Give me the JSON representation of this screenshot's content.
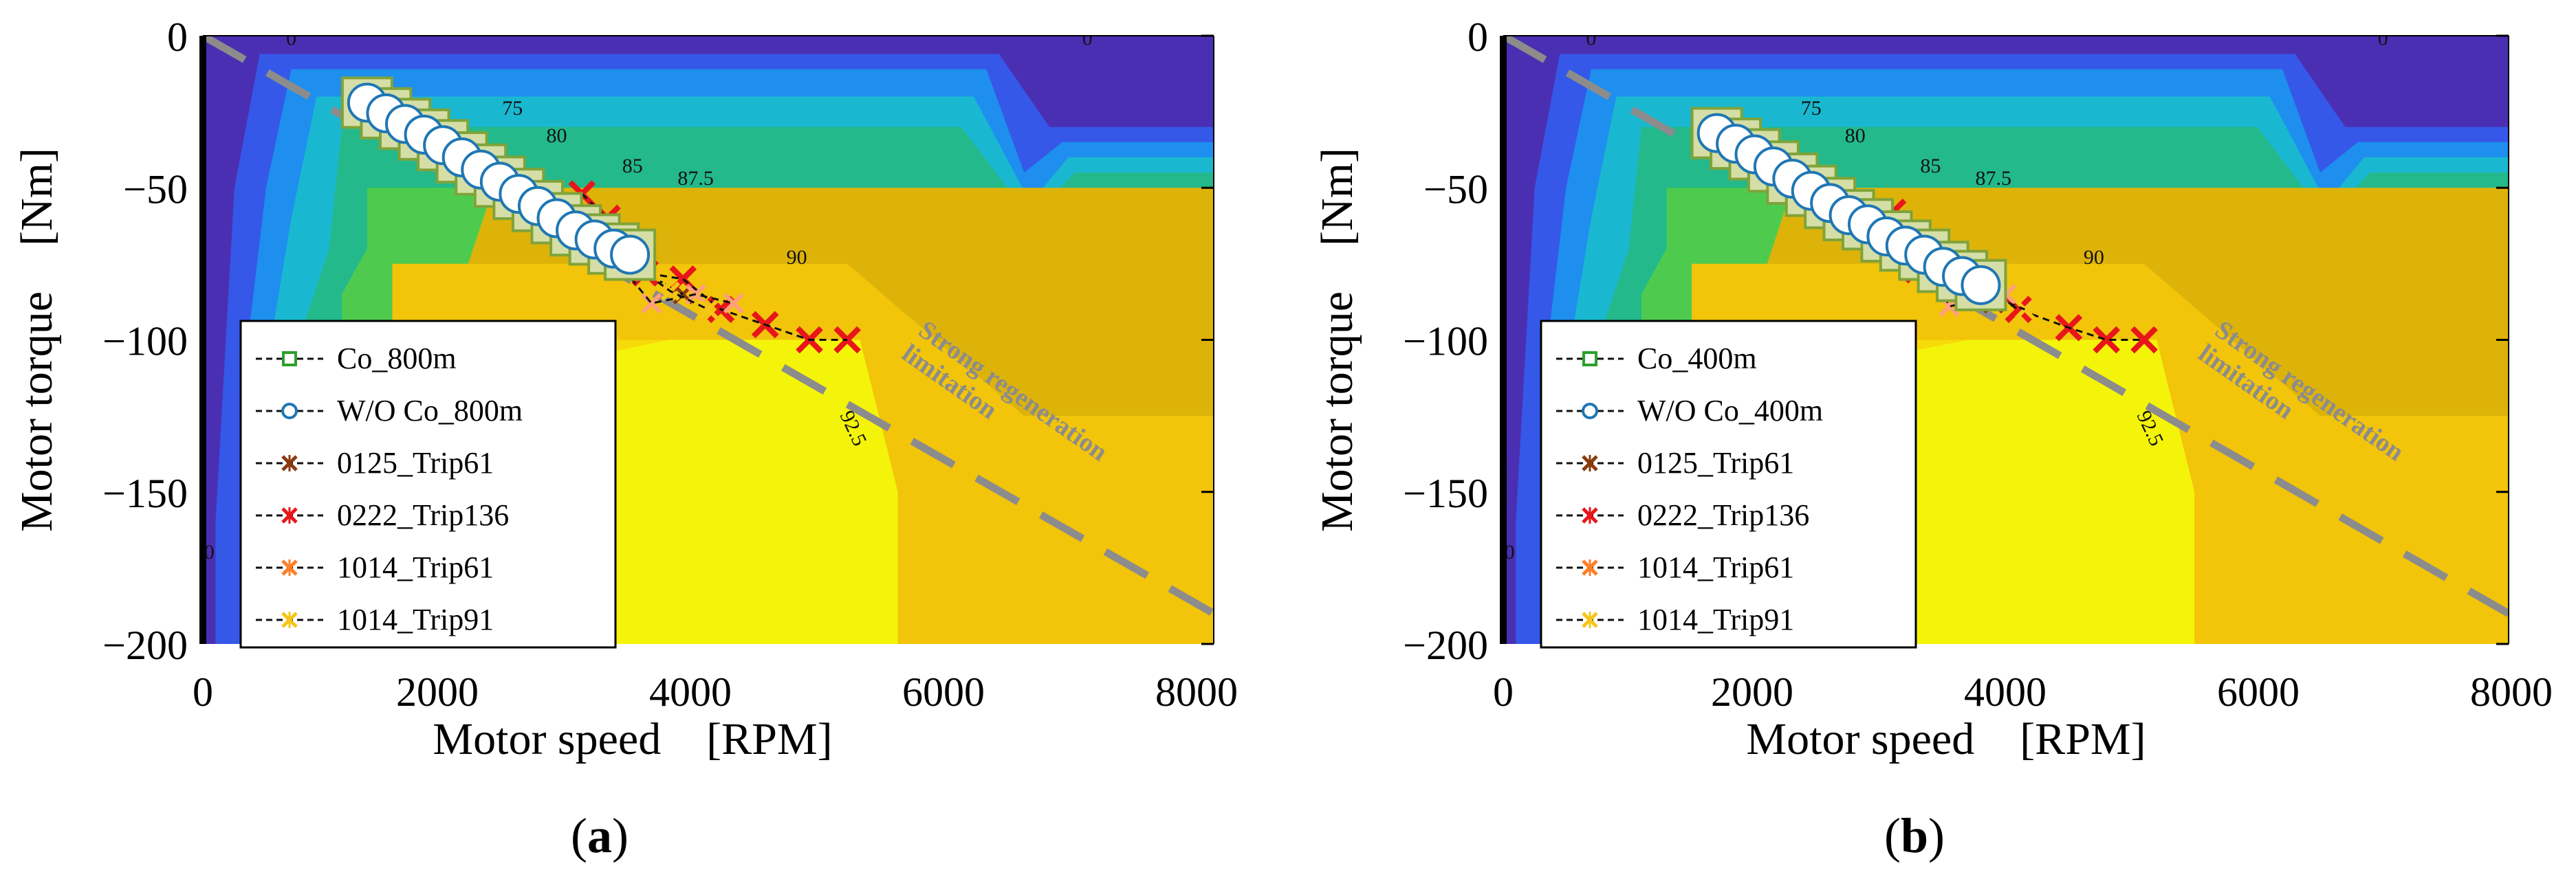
{
  "chart_data": [
    {
      "type": "scatter",
      "panel_label": "a",
      "xlabel": "Motor speed　[RPM]",
      "ylabel": "Motor torque　[Nm]",
      "xlim": [
        0,
        8000
      ],
      "ylim": [
        -200,
        0
      ],
      "xticks": [
        "0",
        "2000",
        "4000",
        "6000",
        "8000"
      ],
      "yticks": [
        "0",
        "−50",
        "−100",
        "−150",
        "−200"
      ],
      "legend": [
        "Co_800m",
        "W/O Co_800m",
        "0125_Trip61",
        "0222_Trip136",
        "1014_Trip61",
        "1014_Trip91"
      ],
      "contour_labels": [
        "0",
        "0",
        "0",
        "75",
        "80",
        "85",
        "87.5",
        "90",
        "92.5"
      ],
      "annotation": "Strong regeneration limitation",
      "limit_line": {
        "x": [
          0,
          8000
        ],
        "y": [
          0,
          -190
        ]
      },
      "series": [
        {
          "name": "Co_800m",
          "x": [
            1300,
            1450,
            1600,
            1750,
            1900,
            2050,
            2200,
            2350,
            2500,
            2650,
            2800,
            2950,
            3100,
            3250,
            3380
          ],
          "y": [
            -22,
            -25.5,
            -29,
            -32.5,
            -36,
            -40,
            -44,
            -48,
            -52,
            -56,
            -60,
            -64,
            -67,
            -70,
            -72
          ]
        },
        {
          "name": "W/O Co_800m",
          "x": [
            1300,
            1450,
            1600,
            1750,
            1900,
            2050,
            2200,
            2350,
            2500,
            2650,
            2800,
            2950,
            3100,
            3250,
            3380
          ],
          "y": [
            -22,
            -25.5,
            -29,
            -32.5,
            -36,
            -40,
            -44,
            -48,
            -52,
            -56,
            -60,
            -64,
            -67,
            -70,
            -72
          ]
        },
        {
          "name": "0125_Trip61",
          "x": [
            2700,
            2900,
            3200,
            3500,
            3800
          ],
          "y": [
            -55,
            -60,
            -70,
            -78,
            -85
          ]
        },
        {
          "name": "0222_Trip136",
          "x": [
            3000,
            3200,
            3500,
            3800,
            4100,
            4450,
            4800,
            5100
          ],
          "y": [
            -52,
            -60,
            -78,
            -80,
            -90,
            -95,
            -100,
            -100
          ]
        },
        {
          "name": "1014_Trip61",
          "x": [
            3100,
            3550,
            3900,
            4200
          ],
          "y": [
            -65,
            -88,
            -85,
            -88
          ]
        },
        {
          "name": "1014_Trip91",
          "x": [
            3300,
            3700,
            4000
          ],
          "y": [
            -72,
            -84,
            -90
          ]
        }
      ]
    },
    {
      "type": "scatter",
      "panel_label": "b",
      "xlabel": "Motor speed　[RPM]",
      "ylabel": "Motor torque　[Nm]",
      "xlim": [
        0,
        8000
      ],
      "ylim": [
        -200,
        0
      ],
      "xticks": [
        "0",
        "2000",
        "4000",
        "6000",
        "8000"
      ],
      "yticks": [
        "0",
        "−50",
        "−100",
        "−150",
        "−200"
      ],
      "legend": [
        "Co_400m",
        "W/O Co_400m",
        "0125_Trip61",
        "0222_Trip136",
        "1014_Trip61",
        "1014_Trip91"
      ],
      "contour_labels": [
        "0",
        "0",
        "0",
        "75",
        "80",
        "85",
        "87.5",
        "90",
        "92.5"
      ],
      "annotation": "Strong regeneration limitation",
      "limit_line": {
        "x": [
          0,
          8000
        ],
        "y": [
          0,
          -190
        ]
      },
      "series": [
        {
          "name": "Co_400m",
          "x": [
            1700,
            1850,
            2000,
            2150,
            2300,
            2450,
            2600,
            2750,
            2900,
            3050,
            3200,
            3350,
            3500,
            3650,
            3800
          ],
          "y": [
            -32,
            -35.5,
            -39,
            -43,
            -47,
            -51,
            -55,
            -59,
            -62,
            -66,
            -69,
            -72,
            -76,
            -79,
            -82
          ]
        },
        {
          "name": "W/O Co_400m",
          "x": [
            1700,
            1850,
            2000,
            2150,
            2300,
            2450,
            2600,
            2750,
            2900,
            3050,
            3200,
            3350,
            3500,
            3650,
            3800
          ],
          "y": [
            -32,
            -35.5,
            -39,
            -43,
            -47,
            -51,
            -55,
            -59,
            -62,
            -66,
            -69,
            -72,
            -76,
            -79,
            -82
          ]
        },
        {
          "name": "0125_Trip61",
          "x": [
            3000,
            3300,
            3600,
            3900
          ],
          "y": [
            -60,
            -72,
            -82,
            -88
          ]
        },
        {
          "name": "0222_Trip136",
          "x": [
            3100,
            3300,
            3700,
            4100,
            4500,
            4800,
            5100
          ],
          "y": [
            -58,
            -77,
            -80,
            -90,
            -96,
            -100,
            -100
          ]
        },
        {
          "name": "1014_Trip61",
          "x": [
            3350,
            3550,
            4000
          ],
          "y": [
            -72,
            -89,
            -85
          ]
        },
        {
          "name": "1014_Trip91",
          "x": [
            3450,
            3850,
            4150
          ],
          "y": [
            -75,
            -85,
            -90
          ]
        }
      ]
    }
  ]
}
